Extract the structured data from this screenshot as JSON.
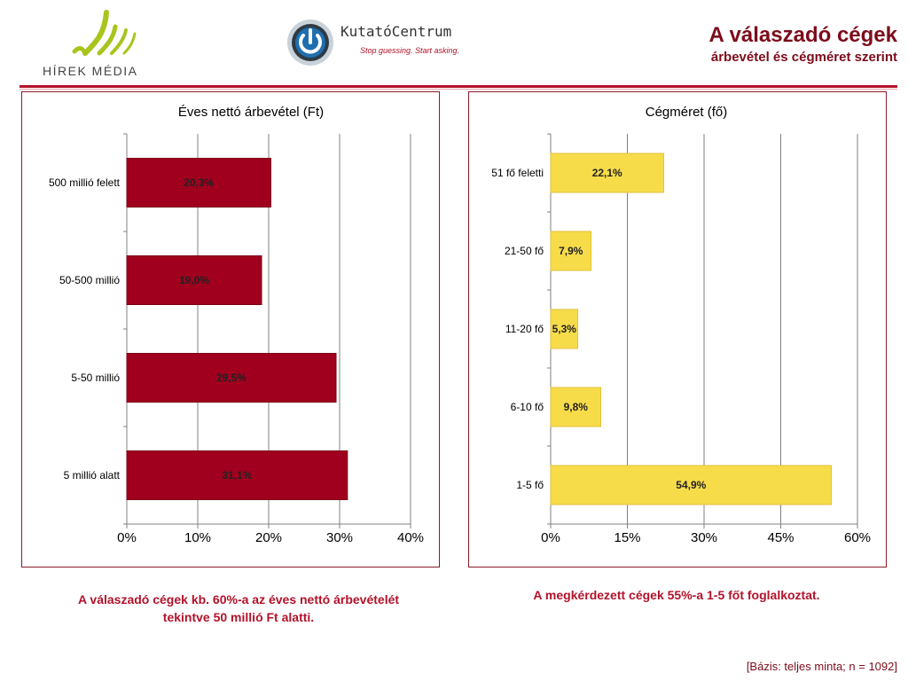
{
  "header": {
    "logo_left_text": "HÍREK MÉDIA",
    "logo_right_brand": "KutatóCentrum",
    "logo_right_tagline": "Stop guessing. Start asking.",
    "title": "A válaszadó cégek",
    "subtitle": "árbevétel és cégméret szerint"
  },
  "colors": {
    "accent": "#7d0c1b",
    "bar_revenue": "#a0001e",
    "bar_size": "#f7dc4a",
    "logo_green": "#a9c41c"
  },
  "chart_data": [
    {
      "type": "bar",
      "orientation": "horizontal",
      "title": "Éves nettó árbevétel (Ft)",
      "categories": [
        "500  millió felett",
        "50-500 millió",
        "5-50 millió",
        "5 millió alatt"
      ],
      "values": [
        20.3,
        19.0,
        29.5,
        31.1
      ],
      "data_labels": [
        "20,3%",
        "19,0%",
        "29,5%",
        "31,1%"
      ],
      "xlim": [
        0,
        40
      ],
      "xticks": [
        "0%",
        "10%",
        "20%",
        "30%",
        "40%"
      ],
      "grid": true,
      "bar_color": "#a0001e"
    },
    {
      "type": "bar",
      "orientation": "horizontal",
      "title": "Cégméret (fő)",
      "categories": [
        "51 fő feletti",
        "21-50 fő",
        "11-20 fő",
        "6-10 fő",
        "1-5 fő"
      ],
      "values": [
        22.1,
        7.9,
        5.3,
        9.8,
        54.9
      ],
      "data_labels": [
        "22,1%",
        "7,9%",
        "5,3%",
        "9,8%",
        "54,9%"
      ],
      "xlim": [
        0,
        60
      ],
      "xticks": [
        "0%",
        "15%",
        "30%",
        "45%",
        "60%"
      ],
      "grid": true,
      "bar_color": "#f7dc4a"
    }
  ],
  "captions": {
    "left_line1": "A válaszadó cégek kb. 60%-a az éves nettó árbevételét",
    "left_line2": "tekintve 50 millió Ft alatti.",
    "right": "A megkérdezett cégek 55%-a 1-5 főt foglalkoztat."
  },
  "footer": {
    "basis": "[Bázis: teljes minta; n = 1092]"
  }
}
